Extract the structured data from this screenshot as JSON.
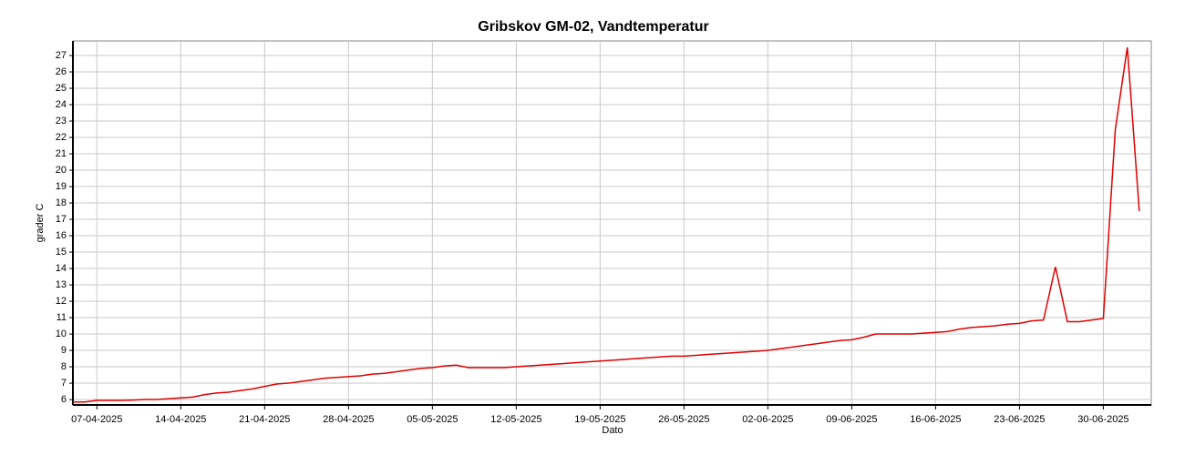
{
  "chart_data": {
    "type": "line",
    "title": "Gribskov GM-02, Vandtemperatur",
    "x_label": "Dato",
    "y_label": "grader C",
    "x": [
      "05-04-2025",
      "06-04-2025",
      "07-04-2025",
      "08-04-2025",
      "09-04-2025",
      "10-04-2025",
      "11-04-2025",
      "12-04-2025",
      "13-04-2025",
      "14-04-2025",
      "15-04-2025",
      "16-04-2025",
      "17-04-2025",
      "18-04-2025",
      "19-04-2025",
      "20-04-2025",
      "21-04-2025",
      "22-04-2025",
      "23-04-2025",
      "24-04-2025",
      "25-04-2025",
      "26-04-2025",
      "27-04-2025",
      "28-04-2025",
      "29-04-2025",
      "30-04-2025",
      "01-05-2025",
      "02-05-2025",
      "03-05-2025",
      "04-05-2025",
      "05-05-2025",
      "06-05-2025",
      "07-05-2025",
      "08-05-2025",
      "09-05-2025",
      "10-05-2025",
      "11-05-2025",
      "12-05-2025",
      "13-05-2025",
      "14-05-2025",
      "15-05-2025",
      "16-05-2025",
      "17-05-2025",
      "18-05-2025",
      "19-05-2025",
      "20-05-2025",
      "21-05-2025",
      "22-05-2025",
      "23-05-2025",
      "24-05-2025",
      "25-05-2025",
      "26-05-2025",
      "27-05-2025",
      "28-05-2025",
      "29-05-2025",
      "30-05-2025",
      "31-05-2025",
      "01-06-2025",
      "02-06-2025",
      "03-06-2025",
      "04-06-2025",
      "05-06-2025",
      "06-06-2025",
      "07-06-2025",
      "08-06-2025",
      "09-06-2025",
      "10-06-2025",
      "11-06-2025",
      "12-06-2025",
      "13-06-2025",
      "14-06-2025",
      "15-06-2025",
      "16-06-2025",
      "17-06-2025",
      "18-06-2025",
      "19-06-2025",
      "20-06-2025",
      "21-06-2025",
      "22-06-2025",
      "23-06-2025",
      "24-06-2025",
      "25-06-2025",
      "26-06-2025",
      "27-06-2025",
      "28-06-2025",
      "29-06-2025",
      "30-06-2025",
      "01-07-2025",
      "02-07-2025",
      "03-07-2025"
    ],
    "series": [
      {
        "name": "Vandtemperatur",
        "color": "#e00000",
        "values": [
          5.85,
          5.85,
          5.95,
          5.95,
          5.95,
          5.97,
          6.0,
          6.0,
          6.05,
          6.1,
          6.15,
          6.3,
          6.4,
          6.45,
          6.55,
          6.65,
          6.8,
          6.95,
          7.0,
          7.1,
          7.2,
          7.3,
          7.35,
          7.4,
          7.45,
          7.55,
          7.6,
          7.7,
          7.8,
          7.9,
          7.95,
          8.05,
          8.1,
          7.95,
          7.95,
          7.95,
          7.95,
          8.0,
          8.05,
          8.1,
          8.15,
          8.2,
          8.25,
          8.3,
          8.35,
          8.4,
          8.45,
          8.5,
          8.55,
          8.6,
          8.65,
          8.65,
          8.7,
          8.75,
          8.8,
          8.85,
          8.9,
          8.95,
          9.0,
          9.1,
          9.2,
          9.3,
          9.4,
          9.5,
          9.6,
          9.65,
          9.8,
          10.0,
          10.0,
          10.0,
          10.0,
          10.05,
          10.1,
          10.15,
          10.3,
          10.4,
          10.45,
          10.5,
          10.6,
          10.65,
          10.8,
          10.85,
          14.1,
          10.75,
          10.75,
          10.85,
          10.95,
          22.5,
          27.5,
          17.5
        ]
      }
    ],
    "xlim": [
      "05-04-2025",
      "04-07-2025"
    ],
    "xticks": [
      "07-04-2025",
      "14-04-2025",
      "21-04-2025",
      "28-04-2025",
      "05-05-2025",
      "12-05-2025",
      "19-05-2025",
      "26-05-2025",
      "02-06-2025",
      "09-06-2025",
      "16-06-2025",
      "23-06-2025",
      "30-06-2025"
    ],
    "ylim": [
      5.67,
      27.89
    ],
    "yticks": [
      6,
      7,
      8,
      9,
      10,
      11,
      12,
      13,
      14,
      15,
      16,
      17,
      18,
      19,
      20,
      21,
      22,
      23,
      24,
      25,
      26,
      27
    ],
    "grid": true
  }
}
